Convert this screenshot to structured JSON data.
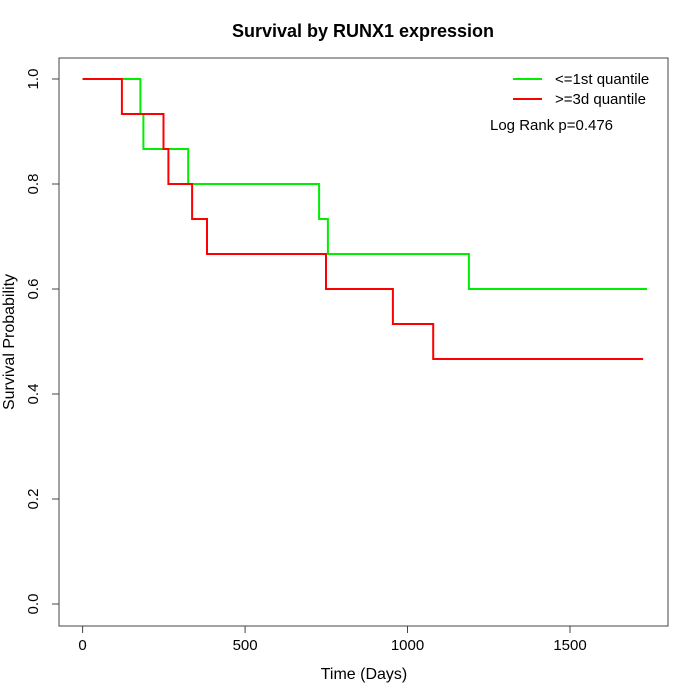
{
  "chart_data": {
    "type": "line",
    "subtype": "kaplan-meier-step",
    "title": "Survival by RUNX1 expression",
    "xlabel": "Time (Days)",
    "ylabel": "Survival Probability",
    "xlim": [
      0,
      1740
    ],
    "ylim": [
      0.0,
      1.0
    ],
    "x_ticks": [
      0,
      500,
      1000,
      1500
    ],
    "x_tick_labels": [
      "0",
      "500",
      "1000",
      "1500"
    ],
    "y_ticks": [
      0.0,
      0.2,
      0.4,
      0.6,
      0.8,
      1.0
    ],
    "y_tick_labels": [
      "0.0",
      "0.2",
      "0.4",
      "0.6",
      "0.8",
      "1.0"
    ],
    "grid": false,
    "legend_position": "top-right",
    "annotation": "Log Rank p=0.476",
    "log_rank_p": 0.476,
    "series": [
      {
        "name": "<=1st quantile",
        "key": "le-1st-quantile",
        "color": "#00ee00",
        "start": {
          "t": 0,
          "s": 1.0
        },
        "steps": [
          {
            "t": 178,
            "s": 0.9333
          },
          {
            "t": 187,
            "s": 0.8667
          },
          {
            "t": 325,
            "s": 0.8
          },
          {
            "t": 728,
            "s": 0.7333
          },
          {
            "t": 755,
            "s": 0.6667
          },
          {
            "t": 1189,
            "s": 0.6
          }
        ],
        "end_t": 1737
      },
      {
        "name": ">=3d quantile",
        "key": "ge-3d-quantile",
        "color": "#ff0000",
        "start": {
          "t": 0,
          "s": 1.0
        },
        "steps": [
          {
            "t": 121,
            "s": 0.9333
          },
          {
            "t": 249,
            "s": 0.8667
          },
          {
            "t": 264,
            "s": 0.8
          },
          {
            "t": 337,
            "s": 0.7333
          },
          {
            "t": 383,
            "s": 0.6667
          },
          {
            "t": 749,
            "s": 0.6
          },
          {
            "t": 955,
            "s": 0.5333
          },
          {
            "t": 1079,
            "s": 0.4667
          }
        ],
        "end_t": 1725
      }
    ]
  }
}
